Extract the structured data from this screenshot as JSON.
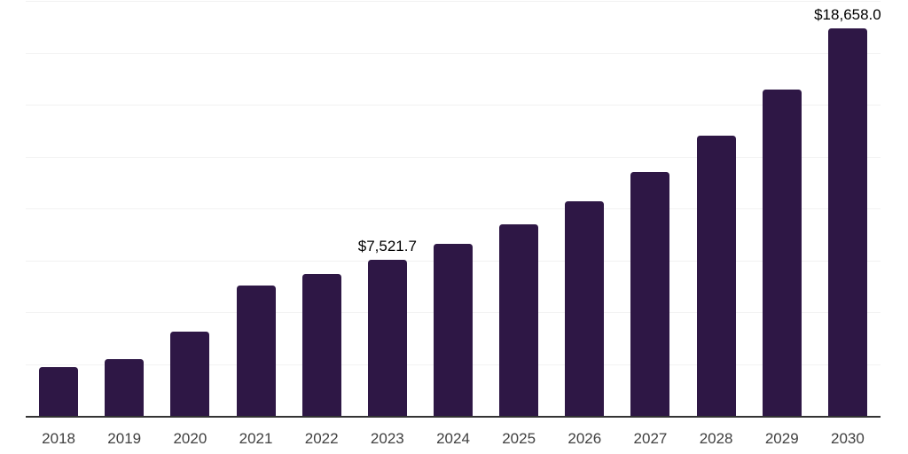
{
  "chart_data": {
    "type": "bar",
    "title": "",
    "xlabel": "",
    "ylabel": "",
    "legend": "none",
    "grid": "horizontal",
    "ylim": [
      0,
      20000
    ],
    "gridline_step": 2500,
    "categories": [
      "2018",
      "2019",
      "2020",
      "2021",
      "2022",
      "2023",
      "2024",
      "2025",
      "2026",
      "2027",
      "2028",
      "2029",
      "2030"
    ],
    "values": [
      2350,
      2750,
      4060,
      6280,
      6840,
      7521.7,
      8270,
      9230,
      10320,
      11750,
      13500,
      15730,
      18658
    ],
    "data_labels": {
      "2023": "$7,521.7",
      "2030": "$18,658.0"
    },
    "colors": {
      "bar": "#2e1745",
      "axis": "#333333",
      "grid": "#f2f2f2",
      "tick_label": "#404040",
      "data_label": "#000000",
      "background": "#ffffff"
    }
  }
}
